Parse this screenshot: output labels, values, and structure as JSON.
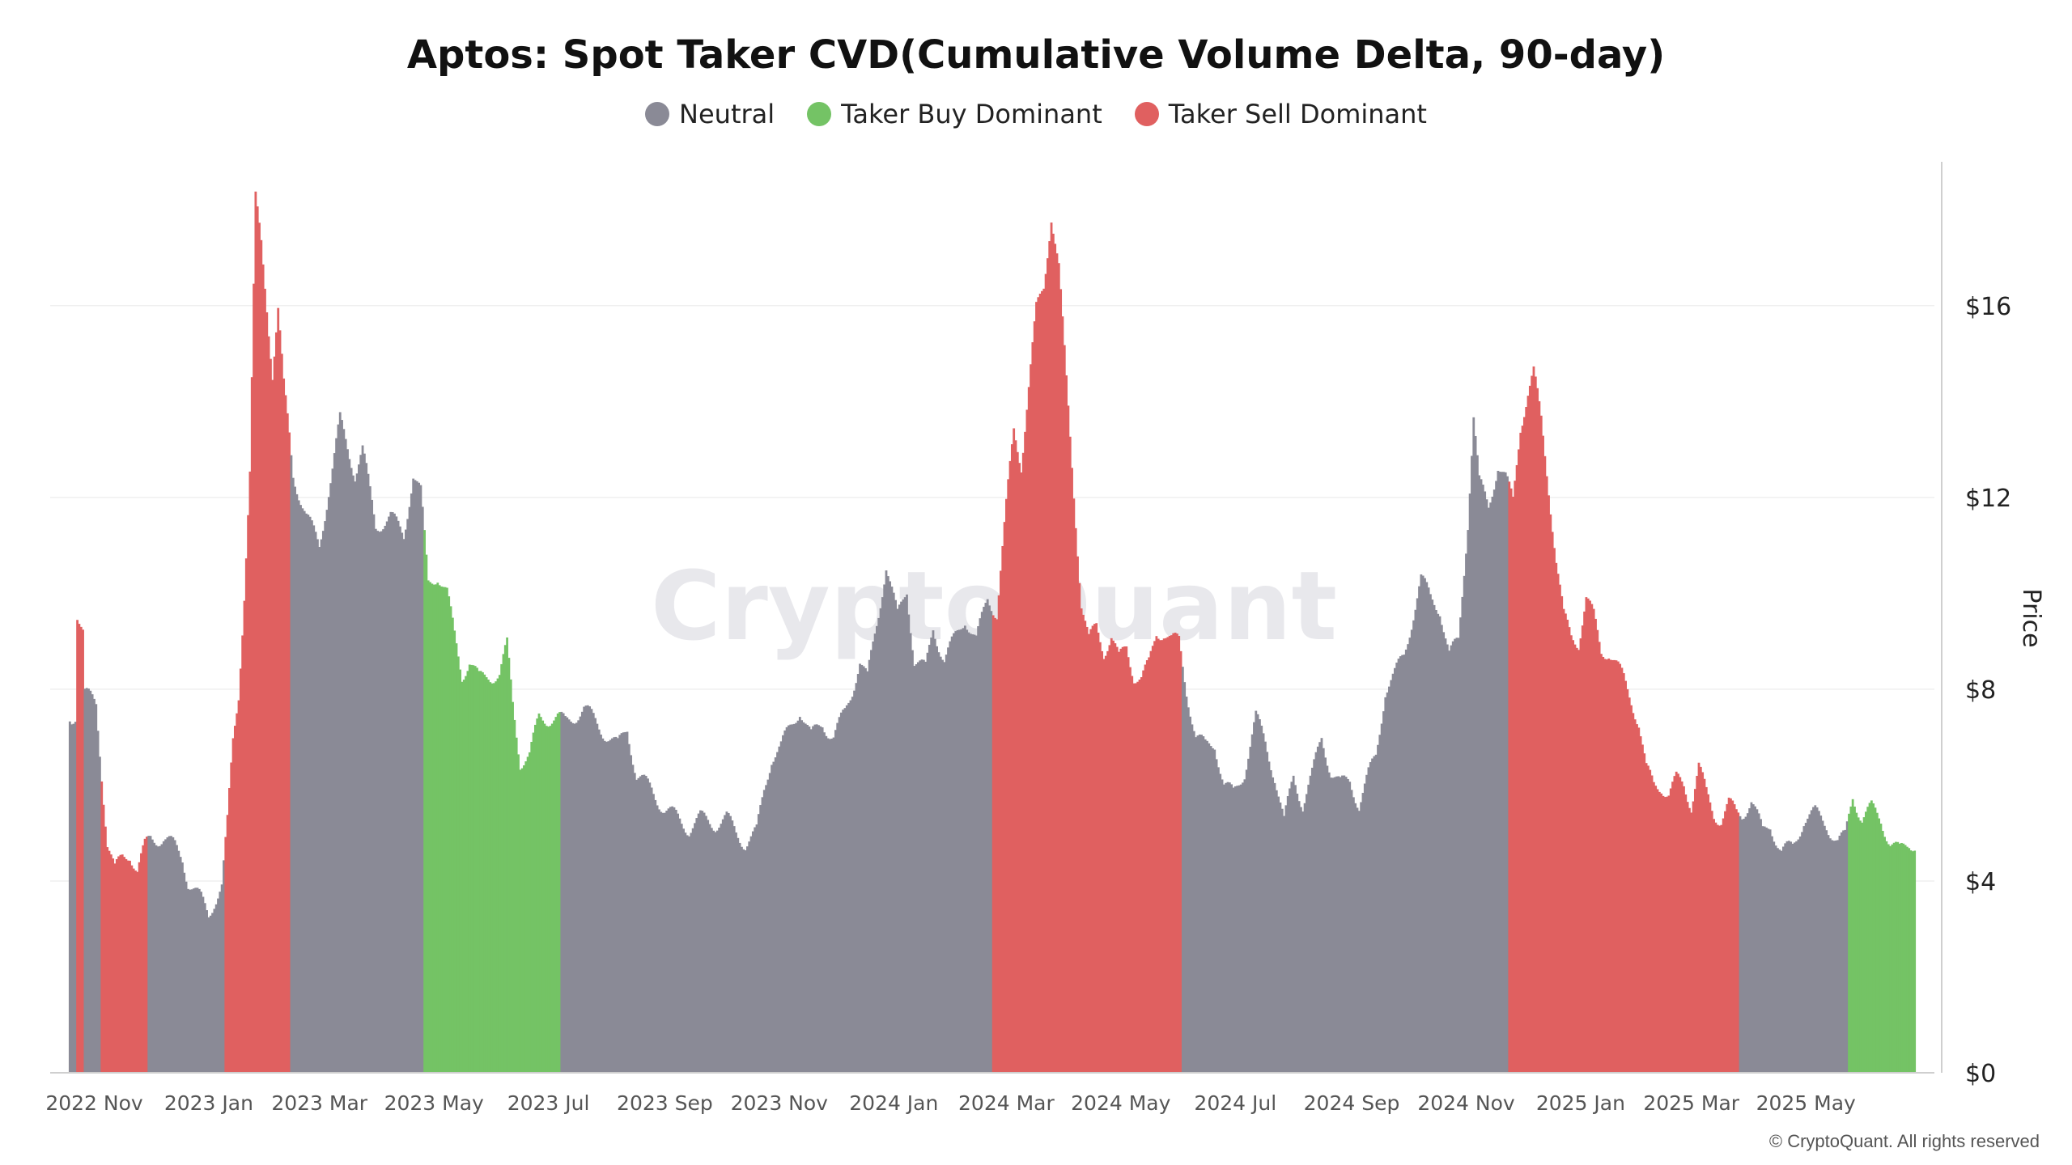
{
  "chart_data": {
    "type": "bar",
    "title": "Aptos: Spot Taker CVD(Cumulative Volume Delta, 90-day)",
    "ylabel": "Price",
    "y_axis_side": "right",
    "ylim": [
      0,
      19
    ],
    "yticks": [
      0,
      4,
      8,
      12,
      16
    ],
    "ytick_labels": [
      "$0",
      "$4",
      "$8",
      "$12",
      "$16"
    ],
    "x_tick_labels": [
      "2022 Nov",
      "2023 Jan",
      "2023 Mar",
      "2023 May",
      "2023 Jul",
      "2023 Sep",
      "2023 Nov",
      "2024 Jan",
      "2024 Mar",
      "2024 May",
      "2024 Jul",
      "2024 Sep",
      "2024 Nov",
      "2025 Jan",
      "2025 Mar",
      "2025 May"
    ],
    "grid": true,
    "legend_position": "top-center",
    "legend": [
      {
        "key": "neutral",
        "label": "Neutral",
        "color": "#8a8a96"
      },
      {
        "key": "buy",
        "label": "Taker Buy Dominant",
        "color": "#74c365"
      },
      {
        "key": "sell",
        "label": "Taker Sell Dominant",
        "color": "#e06060"
      }
    ],
    "watermark": "CryptoQuant",
    "series": [
      {
        "name": "Neutral",
        "color": "#8a8a96",
        "points": [
          {
            "x": "2022-10-20",
            "y": 7.4
          },
          {
            "x": "2022-10-22",
            "y": 7.5
          },
          {
            "x": "2022-10-27",
            "y": 7.9
          },
          {
            "x": "2022-11-02",
            "y": 7.7
          },
          {
            "x": "2022-12-01",
            "y": 4.9
          },
          {
            "x": "2022-12-08",
            "y": 4.9
          },
          {
            "x": "2022-12-14",
            "y": 4.7
          },
          {
            "x": "2022-12-18",
            "y": 4.5
          },
          {
            "x": "2022-12-21",
            "y": 4.0
          },
          {
            "x": "2022-12-28",
            "y": 3.6
          },
          {
            "x": "2023-01-01",
            "y": 3.3
          },
          {
            "x": "2023-01-04",
            "y": 3.6
          },
          {
            "x": "2023-01-08",
            "y": 3.9
          },
          {
            "x": "2023-02-15",
            "y": 12.5
          },
          {
            "x": "2023-02-22",
            "y": 11.6
          },
          {
            "x": "2023-03-01",
            "y": 11.0
          },
          {
            "x": "2023-03-08",
            "y": 12.6
          },
          {
            "x": "2023-03-12",
            "y": 13.6
          },
          {
            "x": "2023-03-20",
            "y": 12.5
          },
          {
            "x": "2023-03-24",
            "y": 13.0
          },
          {
            "x": "2023-03-31",
            "y": 11.4
          },
          {
            "x": "2023-04-08",
            "y": 11.6
          },
          {
            "x": "2023-04-15",
            "y": 11.2
          },
          {
            "x": "2023-04-20",
            "y": 12.5
          },
          {
            "x": "2023-04-24",
            "y": 12.1
          },
          {
            "x": "2023-07-10",
            "y": 7.3
          },
          {
            "x": "2023-07-20",
            "y": 7.6
          },
          {
            "x": "2023-07-31",
            "y": 7.1
          },
          {
            "x": "2023-08-07",
            "y": 6.8
          },
          {
            "x": "2023-08-12",
            "y": 7.2
          },
          {
            "x": "2023-08-17",
            "y": 6.2
          },
          {
            "x": "2023-08-25",
            "y": 5.9
          },
          {
            "x": "2023-09-01",
            "y": 5.5
          },
          {
            "x": "2023-09-08",
            "y": 5.3
          },
          {
            "x": "2023-09-14",
            "y": 5.1
          },
          {
            "x": "2023-09-20",
            "y": 5.3
          },
          {
            "x": "2023-09-28",
            "y": 5.2
          },
          {
            "x": "2023-10-04",
            "y": 5.3
          },
          {
            "x": "2023-10-09",
            "y": 5.0
          },
          {
            "x": "2023-10-14",
            "y": 4.8
          },
          {
            "x": "2023-10-20",
            "y": 5.0
          },
          {
            "x": "2023-10-24",
            "y": 5.9
          },
          {
            "x": "2023-10-28",
            "y": 6.6
          },
          {
            "x": "2023-11-02",
            "y": 6.8
          },
          {
            "x": "2023-11-07",
            "y": 7.2
          },
          {
            "x": "2023-11-12",
            "y": 7.6
          },
          {
            "x": "2023-11-18",
            "y": 7.0
          },
          {
            "x": "2023-11-24",
            "y": 7.3
          },
          {
            "x": "2023-11-30",
            "y": 7.0
          },
          {
            "x": "2023-12-06",
            "y": 7.5
          },
          {
            "x": "2023-12-10",
            "y": 8.0
          },
          {
            "x": "2023-12-14",
            "y": 8.6
          },
          {
            "x": "2023-12-18",
            "y": 8.2
          },
          {
            "x": "2023-12-24",
            "y": 9.6
          },
          {
            "x": "2023-12-28",
            "y": 10.6
          },
          {
            "x": "2024-01-03",
            "y": 9.5
          },
          {
            "x": "2024-01-08",
            "y": 10.1
          },
          {
            "x": "2024-01-12",
            "y": 8.6
          },
          {
            "x": "2024-01-18",
            "y": 8.4
          },
          {
            "x": "2024-01-22",
            "y": 9.3
          },
          {
            "x": "2024-01-28",
            "y": 8.6
          },
          {
            "x": "2024-02-02",
            "y": 9.0
          },
          {
            "x": "2024-02-08",
            "y": 9.5
          },
          {
            "x": "2024-02-14",
            "y": 9.0
          },
          {
            "x": "2024-02-20",
            "y": 9.9
          },
          {
            "x": "2024-06-05",
            "y": 8.0
          },
          {
            "x": "2024-06-10",
            "y": 7.0
          },
          {
            "x": "2024-06-15",
            "y": 6.8
          },
          {
            "x": "2024-06-20",
            "y": 6.9
          },
          {
            "x": "2024-06-25",
            "y": 6.0
          },
          {
            "x": "2024-06-30",
            "y": 5.8
          },
          {
            "x": "2024-07-06",
            "y": 6.3
          },
          {
            "x": "2024-07-12",
            "y": 7.4
          },
          {
            "x": "2024-07-17",
            "y": 6.9
          },
          {
            "x": "2024-07-22",
            "y": 6.2
          },
          {
            "x": "2024-07-27",
            "y": 5.2
          },
          {
            "x": "2024-08-01",
            "y": 6.2
          },
          {
            "x": "2024-08-06",
            "y": 5.6
          },
          {
            "x": "2024-08-11",
            "y": 6.2
          },
          {
            "x": "2024-08-16",
            "y": 7.0
          },
          {
            "x": "2024-08-21",
            "y": 6.3
          },
          {
            "x": "2024-08-26",
            "y": 6.0
          },
          {
            "x": "2024-08-31",
            "y": 6.1
          },
          {
            "x": "2024-09-05",
            "y": 5.6
          },
          {
            "x": "2024-09-10",
            "y": 6.2
          },
          {
            "x": "2024-09-14",
            "y": 6.6
          },
          {
            "x": "2024-09-19",
            "y": 8.0
          },
          {
            "x": "2024-09-24",
            "y": 8.3
          },
          {
            "x": "2024-09-29",
            "y": 8.7
          },
          {
            "x": "2024-10-04",
            "y": 9.6
          },
          {
            "x": "2024-10-08",
            "y": 10.3
          },
          {
            "x": "2024-10-13",
            "y": 9.9
          },
          {
            "x": "2024-10-18",
            "y": 9.7
          },
          {
            "x": "2024-10-23",
            "y": 8.7
          },
          {
            "x": "2024-10-28",
            "y": 9.0
          },
          {
            "x": "2024-11-02",
            "y": 11.5
          },
          {
            "x": "2024-11-05",
            "y": 13.7
          },
          {
            "x": "2024-11-08",
            "y": 12.3
          },
          {
            "x": "2024-11-13",
            "y": 11.8
          },
          {
            "x": "2024-11-18",
            "y": 12.7
          },
          {
            "x": "2024-11-22",
            "y": 12.4
          },
          {
            "x": "2025-03-28",
            "y": 5.4
          },
          {
            "x": "2025-04-02",
            "y": 5.7
          },
          {
            "x": "2025-04-08",
            "y": 5.0
          },
          {
            "x": "2025-04-12",
            "y": 5.2
          },
          {
            "x": "2025-04-18",
            "y": 4.6
          },
          {
            "x": "2025-04-24",
            "y": 4.7
          },
          {
            "x": "2025-04-30",
            "y": 5.3
          },
          {
            "x": "2025-05-06",
            "y": 5.4
          },
          {
            "x": "2025-05-12",
            "y": 5.2
          },
          {
            "x": "2025-05-18",
            "y": 4.8
          },
          {
            "x": "2025-05-22",
            "y": 4.9
          }
        ]
      },
      {
        "name": "Taker Buy Dominant",
        "color": "#74c365",
        "points": [
          {
            "x": "2023-04-28",
            "y": 10.2
          },
          {
            "x": "2023-05-03",
            "y": 10.4
          },
          {
            "x": "2023-05-08",
            "y": 10.0
          },
          {
            "x": "2023-05-12",
            "y": 9.1
          },
          {
            "x": "2023-05-16",
            "y": 8.3
          },
          {
            "x": "2023-05-20",
            "y": 8.6
          },
          {
            "x": "2023-05-25",
            "y": 8.2
          },
          {
            "x": "2023-05-30",
            "y": 8.3
          },
          {
            "x": "2023-06-05",
            "y": 8.3
          },
          {
            "x": "2023-06-09",
            "y": 8.9
          },
          {
            "x": "2023-06-12",
            "y": 7.7
          },
          {
            "x": "2023-06-16",
            "y": 6.5
          },
          {
            "x": "2023-06-21",
            "y": 6.6
          },
          {
            "x": "2023-06-26",
            "y": 7.4
          },
          {
            "x": "2023-07-01",
            "y": 7.4
          },
          {
            "x": "2023-07-06",
            "y": 7.4
          },
          {
            "x": "2025-05-26",
            "y": 5.8
          },
          {
            "x": "2025-05-31",
            "y": 5.3
          },
          {
            "x": "2025-06-05",
            "y": 5.5
          },
          {
            "x": "2025-06-10",
            "y": 5.3
          },
          {
            "x": "2025-06-15",
            "y": 4.8
          },
          {
            "x": "2025-06-20",
            "y": 4.6
          },
          {
            "x": "2025-06-25",
            "y": 4.8
          }
        ]
      },
      {
        "name": "Taker Sell Dominant",
        "color": "#e06060",
        "points": [
          {
            "x": "2022-10-23",
            "y": 9.6
          },
          {
            "x": "2022-10-26",
            "y": 9.2
          },
          {
            "x": "2022-11-08",
            "y": 4.8
          },
          {
            "x": "2022-11-12",
            "y": 4.2
          },
          {
            "x": "2022-11-16",
            "y": 4.5
          },
          {
            "x": "2022-11-20",
            "y": 4.6
          },
          {
            "x": "2022-11-24",
            "y": 4.2
          },
          {
            "x": "2022-11-28",
            "y": 4.7
          },
          {
            "x": "2023-01-11",
            "y": 5.2
          },
          {
            "x": "2023-01-14",
            "y": 6.9
          },
          {
            "x": "2023-01-17",
            "y": 7.9
          },
          {
            "x": "2023-01-20",
            "y": 10.0
          },
          {
            "x": "2023-01-23",
            "y": 12.5
          },
          {
            "x": "2023-01-26",
            "y": 18.2
          },
          {
            "x": "2023-01-29",
            "y": 17.3
          },
          {
            "x": "2023-02-01",
            "y": 16.0
          },
          {
            "x": "2023-02-04",
            "y": 14.6
          },
          {
            "x": "2023-02-07",
            "y": 15.9
          },
          {
            "x": "2023-02-10",
            "y": 14.3
          },
          {
            "x": "2023-02-13",
            "y": 13.3
          },
          {
            "x": "2024-02-25",
            "y": 9.6
          },
          {
            "x": "2024-03-01",
            "y": 11.8
          },
          {
            "x": "2024-03-05",
            "y": 13.4
          },
          {
            "x": "2024-03-09",
            "y": 12.7
          },
          {
            "x": "2024-03-13",
            "y": 14.3
          },
          {
            "x": "2024-03-17",
            "y": 15.9
          },
          {
            "x": "2024-03-21",
            "y": 16.4
          },
          {
            "x": "2024-03-25",
            "y": 17.9
          },
          {
            "x": "2024-03-29",
            "y": 16.8
          },
          {
            "x": "2024-04-02",
            "y": 14.4
          },
          {
            "x": "2024-04-06",
            "y": 12.1
          },
          {
            "x": "2024-04-10",
            "y": 9.8
          },
          {
            "x": "2024-04-14",
            "y": 9.0
          },
          {
            "x": "2024-04-18",
            "y": 9.3
          },
          {
            "x": "2024-04-22",
            "y": 8.8
          },
          {
            "x": "2024-04-26",
            "y": 9.1
          },
          {
            "x": "2024-04-30",
            "y": 8.6
          },
          {
            "x": "2024-05-04",
            "y": 8.9
          },
          {
            "x": "2024-05-08",
            "y": 8.3
          },
          {
            "x": "2024-05-12",
            "y": 8.2
          },
          {
            "x": "2024-05-16",
            "y": 8.5
          },
          {
            "x": "2024-05-20",
            "y": 9.2
          },
          {
            "x": "2024-05-24",
            "y": 9.2
          },
          {
            "x": "2024-05-28",
            "y": 9.0
          },
          {
            "x": "2024-06-01",
            "y": 9.0
          },
          {
            "x": "2024-11-26",
            "y": 11.9
          },
          {
            "x": "2024-11-30",
            "y": 13.5
          },
          {
            "x": "2024-12-04",
            "y": 14.2
          },
          {
            "x": "2024-12-07",
            "y": 14.6
          },
          {
            "x": "2024-12-11",
            "y": 13.6
          },
          {
            "x": "2024-12-15",
            "y": 12.2
          },
          {
            "x": "2024-12-19",
            "y": 10.7
          },
          {
            "x": "2024-12-23",
            "y": 9.5
          },
          {
            "x": "2024-12-27",
            "y": 9.1
          },
          {
            "x": "2024-12-31",
            "y": 9.0
          },
          {
            "x": "2025-01-04",
            "y": 9.9
          },
          {
            "x": "2025-01-08",
            "y": 9.5
          },
          {
            "x": "2025-01-12",
            "y": 8.8
          },
          {
            "x": "2025-01-16",
            "y": 8.8
          },
          {
            "x": "2025-01-20",
            "y": 8.5
          },
          {
            "x": "2025-01-24",
            "y": 8.2
          },
          {
            "x": "2025-01-28",
            "y": 7.8
          },
          {
            "x": "2025-02-01",
            "y": 7.3
          },
          {
            "x": "2025-02-05",
            "y": 6.3
          },
          {
            "x": "2025-02-09",
            "y": 6.0
          },
          {
            "x": "2025-02-13",
            "y": 6.0
          },
          {
            "x": "2025-02-17",
            "y": 5.8
          },
          {
            "x": "2025-02-21",
            "y": 6.1
          },
          {
            "x": "2025-02-25",
            "y": 6.0
          },
          {
            "x": "2025-03-01",
            "y": 5.6
          },
          {
            "x": "2025-03-05",
            "y": 6.4
          },
          {
            "x": "2025-03-09",
            "y": 5.8
          },
          {
            "x": "2025-03-13",
            "y": 5.4
          },
          {
            "x": "2025-03-17",
            "y": 5.3
          },
          {
            "x": "2025-03-21",
            "y": 5.6
          },
          {
            "x": "2025-03-25",
            "y": 5.4
          }
        ]
      }
    ]
  },
  "footer": {
    "credit": "© CryptoQuant. All rights reserved"
  }
}
